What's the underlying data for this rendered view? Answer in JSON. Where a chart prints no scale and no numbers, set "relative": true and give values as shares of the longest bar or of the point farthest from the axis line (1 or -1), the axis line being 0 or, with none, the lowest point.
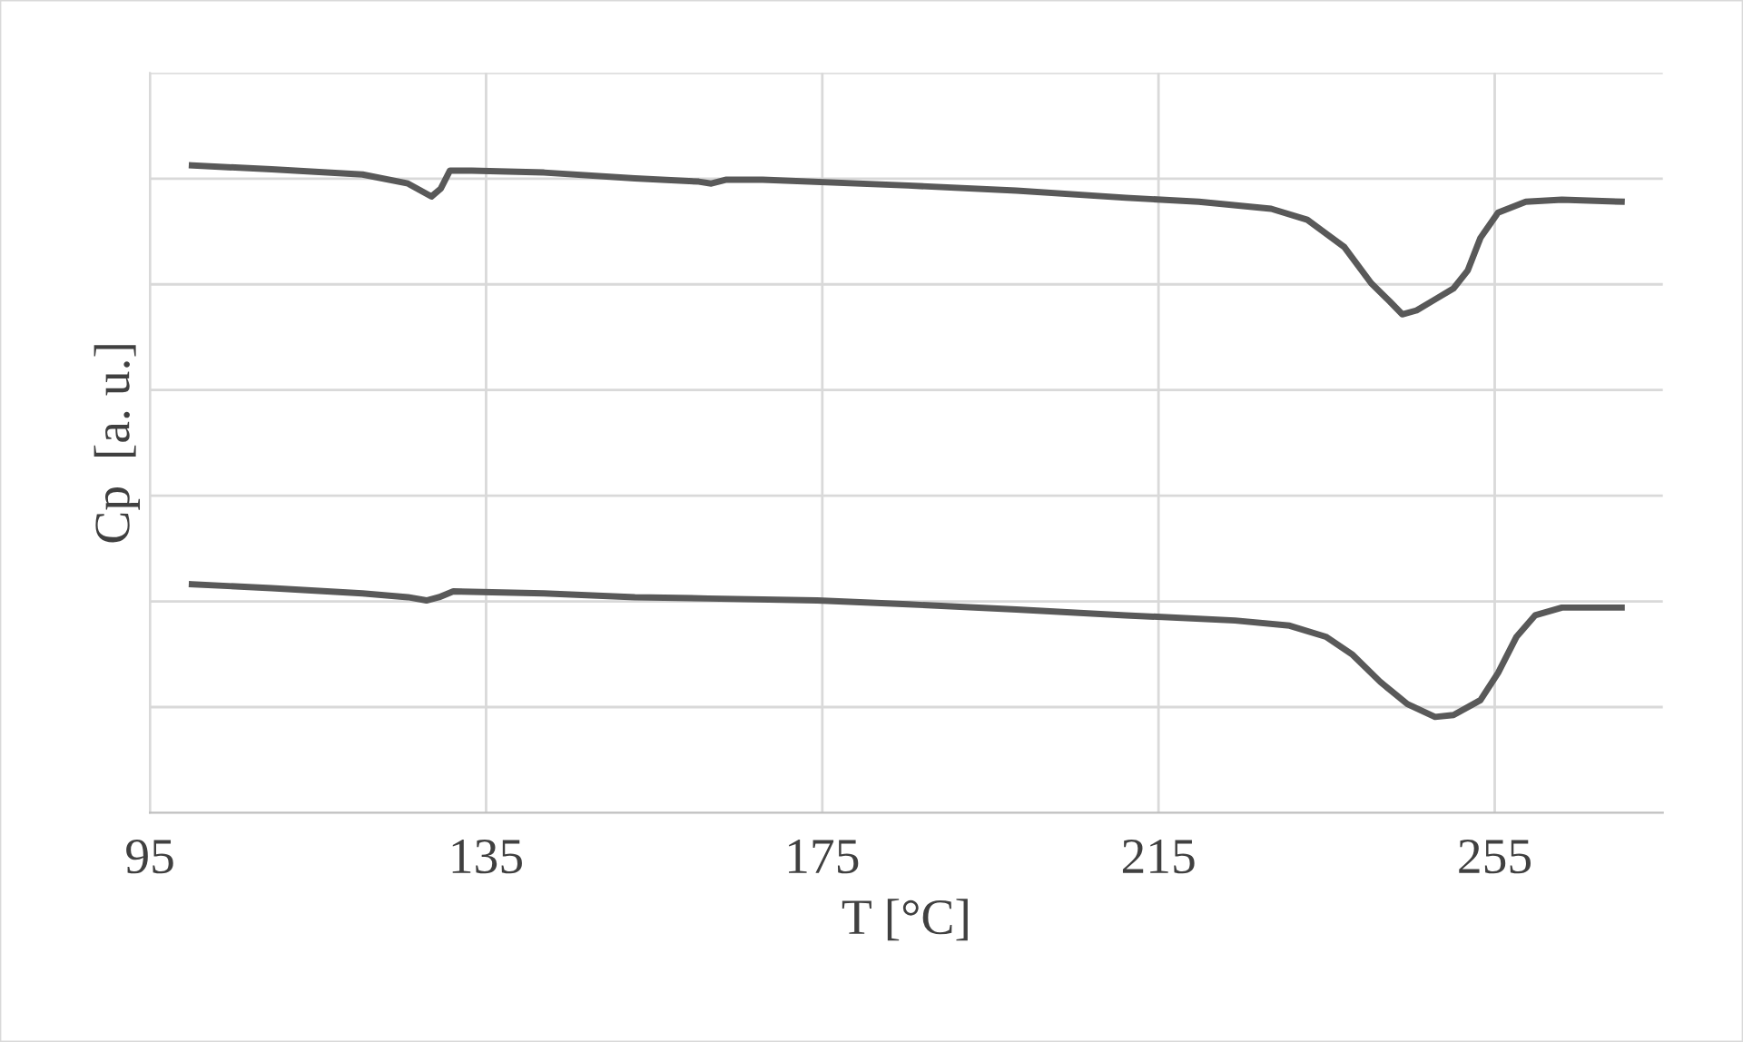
{
  "chart_data": {
    "type": "line",
    "xlabel": "T [°C]",
    "ylabel": "Cp  [a. u.]",
    "relative": true,
    "xlim": [
      95,
      275
    ],
    "xticks": [
      95,
      135,
      175,
      215,
      255
    ],
    "grid": true,
    "legend": false,
    "tick_labels": "x",
    "series": [
      {
        "color": "#595959",
        "x": [
          100,
          109.5,
          120.3,
          125.7,
          128.5,
          129.6,
          130.7,
          133.3,
          141.9,
          152.7,
          160.3,
          161.8,
          163.6,
          167.9,
          185.2,
          198.1,
          211.1,
          219.8,
          228.4,
          232.7,
          237.1,
          240.3,
          242.5,
          244.0,
          245.7,
          247.9,
          250.1,
          251.8,
          253.3,
          255.4,
          258.7,
          263.0,
          270.1
        ],
        "values": [
          1.0,
          0.994,
          0.986,
          0.972,
          0.952,
          0.964,
          0.992,
          0.992,
          0.989,
          0.98,
          0.975,
          0.972,
          0.978,
          0.978,
          0.969,
          0.961,
          0.95,
          0.944,
          0.933,
          0.916,
          0.874,
          0.818,
          0.79,
          0.77,
          0.776,
          0.793,
          0.81,
          0.838,
          0.888,
          0.927,
          0.944,
          0.947,
          0.944
        ]
      },
      {
        "color": "#595959",
        "x": [
          100,
          109.5,
          120.3,
          125.7,
          127.9,
          129.4,
          131.1,
          141.9,
          152.7,
          161.4,
          174.4,
          185.2,
          198.1,
          211.1,
          224.1,
          230.6,
          234.9,
          238.1,
          241.4,
          244.6,
          247.9,
          250.1,
          253.3,
          255.4,
          257.6,
          259.8,
          263.0,
          270.1
        ],
        "values": [
          0.353,
          0.347,
          0.339,
          0.333,
          0.328,
          0.333,
          0.342,
          0.339,
          0.333,
          0.331,
          0.328,
          0.322,
          0.314,
          0.305,
          0.297,
          0.289,
          0.272,
          0.244,
          0.202,
          0.168,
          0.148,
          0.151,
          0.174,
          0.216,
          0.272,
          0.305,
          0.317,
          0.317
        ]
      }
    ]
  }
}
